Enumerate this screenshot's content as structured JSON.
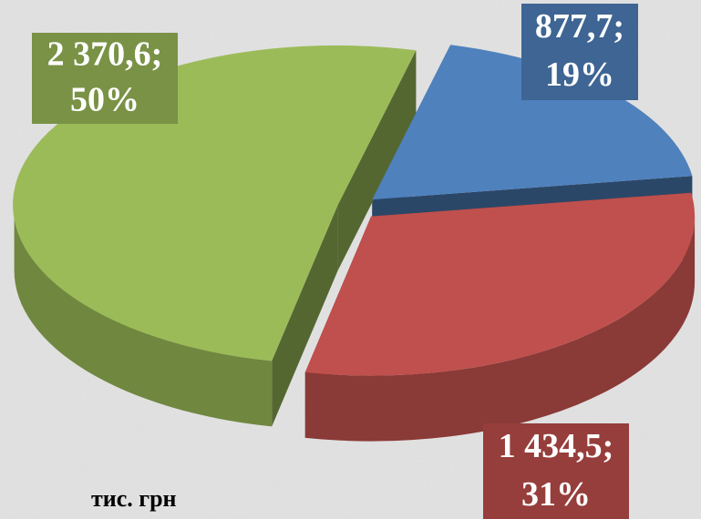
{
  "chart_data": {
    "type": "pie",
    "values": [
      877.7,
      1434.5,
      2370.6
    ],
    "value_labels": [
      "877,7;",
      "1 434,5;",
      "2 370,6;"
    ],
    "percents": [
      19,
      31,
      50
    ],
    "percent_labels": [
      "19%",
      "31%",
      "50%"
    ],
    "colors": [
      "#4f81bd",
      "#c0504d",
      "#9bbb59"
    ],
    "annotation": "тис. грн"
  }
}
